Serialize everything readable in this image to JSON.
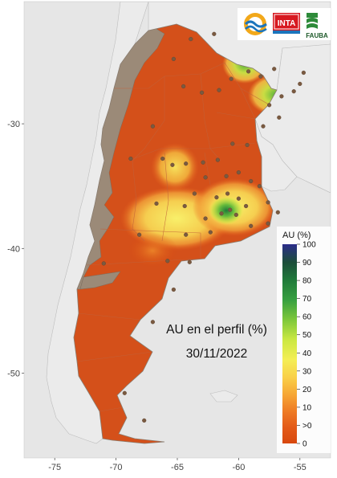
{
  "map": {
    "title_line1": "AU en el perfil (%)",
    "title_line2": "30/11/2022",
    "x_ticks": [
      {
        "lon": -75,
        "label": "-75"
      },
      {
        "lon": -70,
        "label": "-70"
      },
      {
        "lon": -65,
        "label": "-65"
      },
      {
        "lon": -60,
        "label": "-60"
      },
      {
        "lon": -55,
        "label": "-55"
      }
    ],
    "y_ticks": [
      {
        "lat": -30,
        "label": "-30"
      },
      {
        "lat": -40,
        "label": "-40"
      },
      {
        "lat": -50,
        "label": "-50"
      }
    ],
    "extent": {
      "lon_min": -77.5,
      "lon_max": -52.5,
      "lat_min": -56.8,
      "lat_max": -20.2
    }
  },
  "legend": {
    "title": "AU (%)",
    "ticks": [
      "100",
      "90",
      "80",
      "70",
      "60",
      "50",
      "40",
      "30",
      "20",
      "10",
      ">0",
      "0"
    ],
    "colors": [
      "#2b2c8a",
      "#1c4e3a",
      "#1f7a3a",
      "#37a040",
      "#7ec83a",
      "#cbe842",
      "#f4ee55",
      "#f9c843",
      "#f29a2e",
      "#e8621c",
      "#d8480e"
    ]
  },
  "logos": {
    "inta": "INTA",
    "fauba": "FAUBA"
  },
  "colors": {
    "dry": "#d4501a",
    "excluded": "#9b8a78",
    "ocean": "#e6e6e6",
    "neighbor": "#ebebeb"
  },
  "stations": [
    [
      -62.0,
      -22.8
    ],
    [
      -63.9,
      -23.2
    ],
    [
      -65.3,
      -24.8
    ],
    [
      -64.5,
      -27.0
    ],
    [
      -63.0,
      -27.5
    ],
    [
      -61.6,
      -27.3
    ],
    [
      -60.6,
      -26.4
    ],
    [
      -59.2,
      -25.8
    ],
    [
      -58.2,
      -26.2
    ],
    [
      -57.1,
      -25.6
    ],
    [
      -55.5,
      -27.4
    ],
    [
      -56.5,
      -27.8
    ],
    [
      -57.5,
      -28.5
    ],
    [
      -55.0,
      -26.8
    ],
    [
      -54.7,
      -25.9
    ],
    [
      -56.7,
      -29.5
    ],
    [
      -58.0,
      -30.2
    ],
    [
      -59.3,
      -31.7
    ],
    [
      -60.5,
      -31.6
    ],
    [
      -61.7,
      -32.9
    ],
    [
      -62.9,
      -33.1
    ],
    [
      -64.3,
      -33.2
    ],
    [
      -65.4,
      -33.3
    ],
    [
      -68.8,
      -32.8
    ],
    [
      -67.0,
      -30.2
    ],
    [
      -66.2,
      -32.8
    ],
    [
      -62.7,
      -34.3
    ],
    [
      -61.0,
      -34.2
    ],
    [
      -60.0,
      -33.9
    ],
    [
      -59.0,
      -34.6
    ],
    [
      -58.3,
      -35.0
    ],
    [
      -57.6,
      -36.3
    ],
    [
      -56.8,
      -37.1
    ],
    [
      -59.4,
      -36.6
    ],
    [
      -60.9,
      -35.6
    ],
    [
      -61.8,
      -35.9
    ],
    [
      -63.6,
      -35.6
    ],
    [
      -64.4,
      -36.6
    ],
    [
      -62.7,
      -37.6
    ],
    [
      -61.4,
      -37.2
    ],
    [
      -60.2,
      -37.3
    ],
    [
      -59.0,
      -38.2
    ],
    [
      -57.6,
      -38.0
    ],
    [
      -60.0,
      -36.0
    ],
    [
      -60.7,
      -36.9
    ],
    [
      -64.3,
      -38.9
    ],
    [
      -62.3,
      -38.7
    ],
    [
      -65.8,
      -41.0
    ],
    [
      -64.0,
      -41.1
    ],
    [
      -68.1,
      -38.9
    ],
    [
      -67.0,
      -45.9
    ],
    [
      -69.3,
      -51.6
    ],
    [
      -67.7,
      -53.8
    ],
    [
      -71.0,
      -41.2
    ],
    [
      -65.3,
      -43.3
    ],
    [
      -66.7,
      -36.4
    ]
  ]
}
